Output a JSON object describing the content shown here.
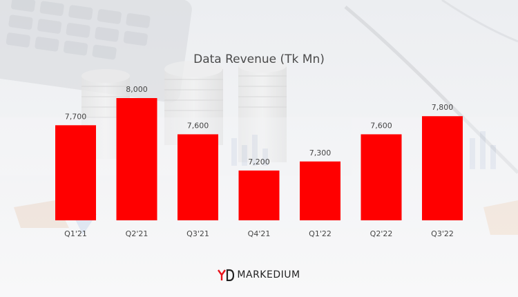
{
  "brand": {
    "name": "MARKEDIUM",
    "accent": "#e8111a"
  },
  "colors": {
    "bar": "#ff0000",
    "label": "#444444"
  },
  "chart_data": {
    "type": "bar",
    "title": "Data Revenue (Tk Mn)",
    "categories": [
      "Q1'21",
      "Q2'21",
      "Q3'21",
      "Q4'21",
      "Q1'22",
      "Q2'22",
      "Q3'22"
    ],
    "values": [
      7700,
      8000,
      7600,
      7200,
      7300,
      7600,
      7800
    ],
    "value_labels": [
      "7,700",
      "8,000",
      "7,600",
      "7,200",
      "7,300",
      "7,600",
      "7,800"
    ],
    "xlabel": "",
    "ylabel": "",
    "grid": false,
    "legend": false
  }
}
